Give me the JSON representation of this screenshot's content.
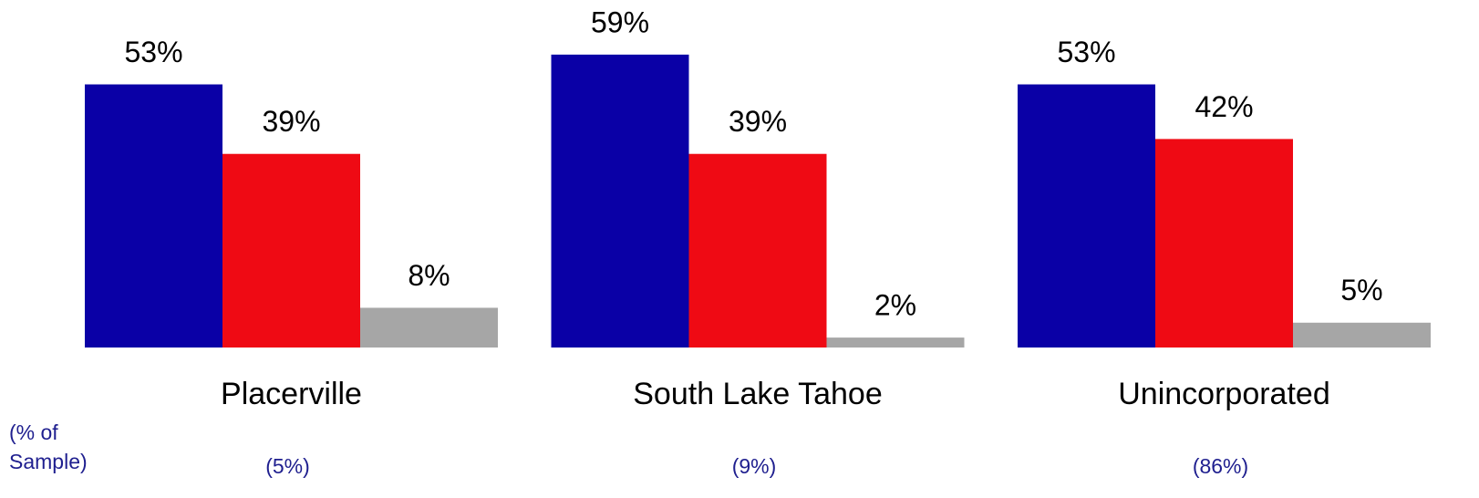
{
  "chart_data": {
    "type": "bar",
    "categories": [
      "Placerville",
      "South Lake Tahoe",
      "Unincorporated"
    ],
    "series": [
      {
        "color": "#0a00a6",
        "values": [
          53,
          59,
          53
        ],
        "value_labels": [
          "53%",
          "59%",
          "53%"
        ]
      },
      {
        "color": "#ef0a14",
        "values": [
          39,
          39,
          42
        ],
        "value_labels": [
          "39%",
          "39%",
          "42%"
        ]
      },
      {
        "color": "#a6a6a6",
        "values": [
          8,
          2,
          5
        ],
        "value_labels": [
          "8%",
          "2%",
          "5%"
        ]
      }
    ],
    "ylim": [
      0,
      70
    ],
    "sample_title": "(% of Sample)",
    "sample_values": [
      5,
      9,
      86
    ],
    "sample_labels": [
      "(5%)",
      "(9%)",
      "(86%)"
    ]
  }
}
